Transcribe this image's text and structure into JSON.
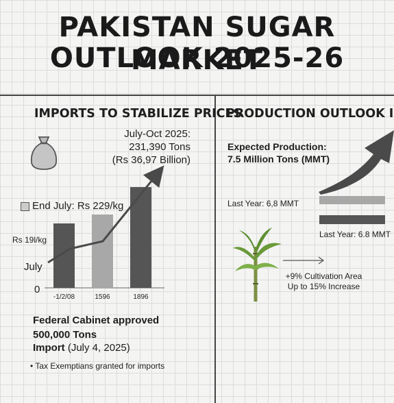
{
  "title": {
    "line1": "PAKISTAN SUGAR MARKET",
    "line2": "OUTLOOK 2025-26"
  },
  "left": {
    "heading": "IMPORTS TO STABILIZE PRICES",
    "import_period": "July-Oct 2025:",
    "import_tons": "231,390 Tons",
    "import_value": "(Rs 36,97 Billion)",
    "end_july_label": "End July: Rs 229/kg",
    "price_start_label": "Rs 19l/kg",
    "july_label": "July",
    "zero_label": "0",
    "cabinet_line1": "Federal Cabinet approved",
    "cabinet_line2": "500,000 Tons",
    "cabinet_line3": "Import",
    "cabinet_date": "(July 4, 2025)",
    "bullet": "Tax Exemptians granted for imports"
  },
  "right": {
    "heading": "PRODUCTION OUTLOOK IMPROVE",
    "expected_label": "Expected Production:",
    "expected_value": "7.5 Million Tons (MMT)",
    "last_year_1": "Last Year: 6,8 MMT",
    "last_year_2": "Last Year: 6.8 MMT",
    "cultivation_line1": "+9% Cultivation Area",
    "cultivation_line2": "Up to 15% Increase"
  },
  "chart_data": {
    "type": "bar",
    "categories": [
      "-1/2/08",
      "1596",
      "1896"
    ],
    "values": [
      188,
      214,
      294
    ],
    "ylim": [
      0,
      320
    ],
    "bar_colors": [
      "#555555",
      "#a8a8a8",
      "#555555"
    ],
    "trend_line": true
  },
  "colors": {
    "dark_bar": "#555555",
    "light_bar": "#a8a8a8",
    "arrow": "#4a4a4a",
    "cane_green": "#6a9a3a"
  },
  "icons": {
    "sack": "sack-icon",
    "sugarcane": "sugarcane-icon",
    "end_july_marker": "square-marker-icon"
  }
}
